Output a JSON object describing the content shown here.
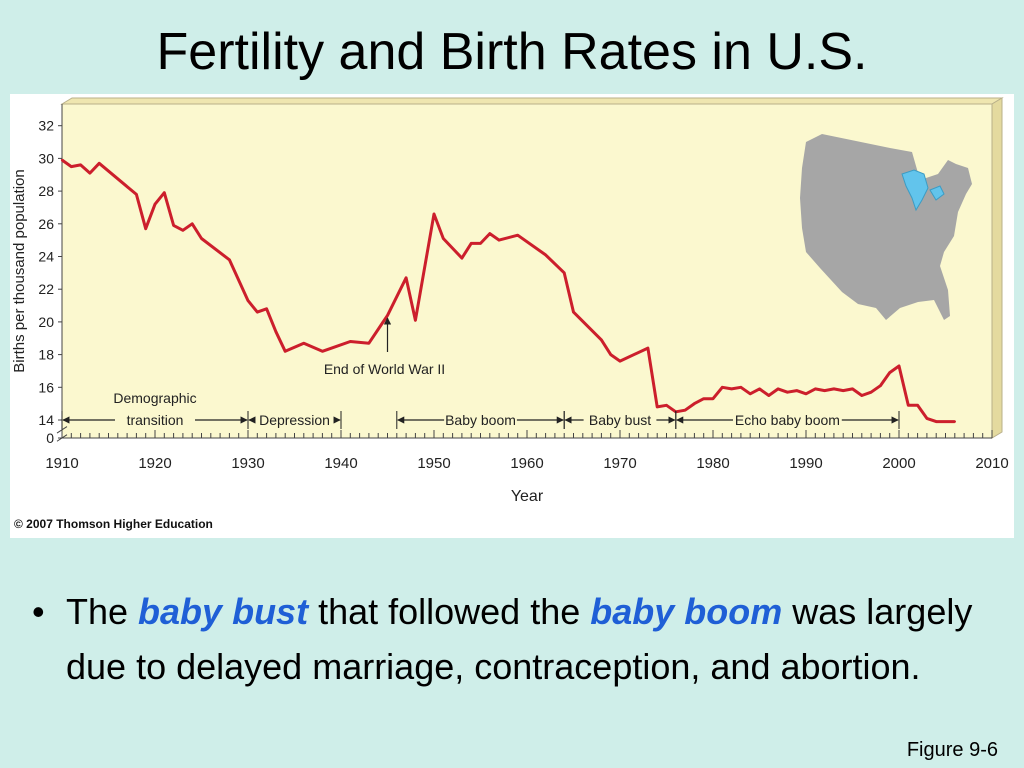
{
  "slide": {
    "title": "Fertility and Birth Rates in U.S.",
    "bullet_symbol": "•",
    "bullet_parts": [
      "The ",
      "baby bust",
      " that followed the ",
      "baby boom",
      " was largely due to delayed marriage, contraception, and abortion."
    ],
    "figure_caption": "Figure 9-6"
  },
  "colors": {
    "background": "#cfeee9",
    "plot_background": "#fbf8cf",
    "line": "#cc1f2c",
    "map_fill": "#a6a6a6",
    "lakes": "#62c4ec",
    "emphasis": "#1f5fd6"
  },
  "chart_data": {
    "type": "line",
    "title": "",
    "xlabel": "Year",
    "ylabel": "Births per thousand population",
    "xlim": [
      1910,
      2010
    ],
    "ylim": [
      0,
      32
    ],
    "x_ticks": [
      1910,
      1920,
      1930,
      1940,
      1950,
      1960,
      1970,
      1980,
      1990,
      2000,
      2010
    ],
    "y_ticks": [
      0,
      14,
      16,
      18,
      20,
      22,
      24,
      26,
      28,
      30,
      32
    ],
    "y_axis_break": true,
    "copyright": "© 2007 Thomson Higher Education",
    "series": [
      {
        "x": [
          1910,
          1911,
          1912,
          1913,
          1914,
          1918,
          1919,
          1920,
          1921,
          1922,
          1923,
          1924,
          1925,
          1928,
          1930,
          1931,
          1932,
          1933,
          1934,
          1936,
          1938,
          1939,
          1941,
          1943,
          1945,
          1947,
          1948,
          1950,
          1951,
          1953,
          1954,
          1955,
          1956,
          1957,
          1959,
          1962,
          1964,
          1965,
          1968,
          1969,
          1970,
          1973,
          1974,
          1975,
          1976,
          1977,
          1978,
          1979,
          1980,
          1981,
          1982,
          1983,
          1984,
          1985,
          1986,
          1987,
          1988,
          1989,
          1990,
          1991,
          1992,
          1993,
          1994,
          1995,
          1996,
          1997,
          1998,
          1999,
          2000,
          2001,
          2002,
          2003,
          2004,
          2006
        ],
        "values": [
          29.9,
          29.5,
          29.6,
          29.1,
          29.7,
          27.8,
          25.7,
          27.2,
          27.9,
          25.9,
          25.6,
          26.0,
          25.1,
          23.8,
          21.3,
          20.6,
          20.8,
          19.4,
          18.2,
          18.7,
          18.2,
          18.4,
          18.8,
          18.7,
          20.4,
          22.7,
          20.1,
          26.6,
          25.1,
          23.9,
          24.8,
          24.8,
          25.4,
          25.0,
          25.3,
          24.1,
          23.0,
          20.6,
          18.9,
          18.0,
          17.6,
          18.4,
          14.8,
          14.9,
          14.5,
          14.6,
          15.0,
          15.3,
          15.3,
          16.0,
          15.9,
          16.0,
          15.6,
          15.9,
          15.5,
          15.9,
          15.7,
          15.8,
          15.6,
          15.9,
          15.8,
          15.9,
          15.8,
          15.9,
          15.5,
          15.7,
          16.1,
          16.9,
          17.3,
          14.9,
          14.9,
          14.1,
          13.9,
          13.9
        ]
      }
    ],
    "annotations": {
      "end_of_war": "End of World War II",
      "eras": [
        {
          "label": "Demographic\ntransition",
          "start": 1910,
          "end": 1930
        },
        {
          "label": "Depression",
          "start": 1930,
          "end": 1940
        },
        {
          "label": "Baby boom",
          "start": 1946,
          "end": 1964
        },
        {
          "label": "Baby bust",
          "start": 1964,
          "end": 1976
        },
        {
          "label": "Echo baby boom",
          "start": 1976,
          "end": 2000
        }
      ]
    }
  }
}
